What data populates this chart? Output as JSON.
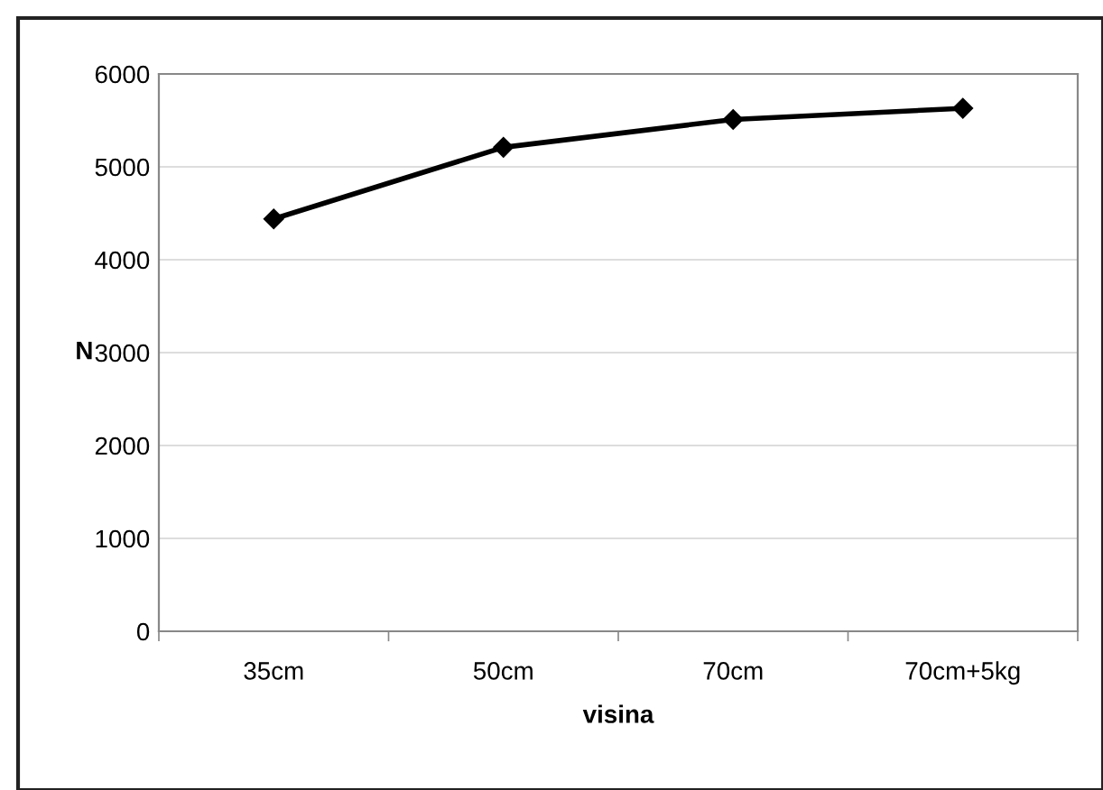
{
  "chart_data": {
    "type": "line",
    "xlabel": "visina",
    "ylabel": "N",
    "categories": [
      "35cm",
      "50cm",
      "70cm",
      "70cm+5kg"
    ],
    "series": [
      {
        "color": "#000000",
        "values": [
          4440,
          5210,
          5510,
          5630
        ]
      }
    ],
    "ylim": [
      0,
      6000
    ],
    "yticks": [
      0,
      1000,
      2000,
      3000,
      4000,
      5000,
      6000
    ],
    "grid": "y",
    "marker": "diamond",
    "line_style": "solid"
  }
}
